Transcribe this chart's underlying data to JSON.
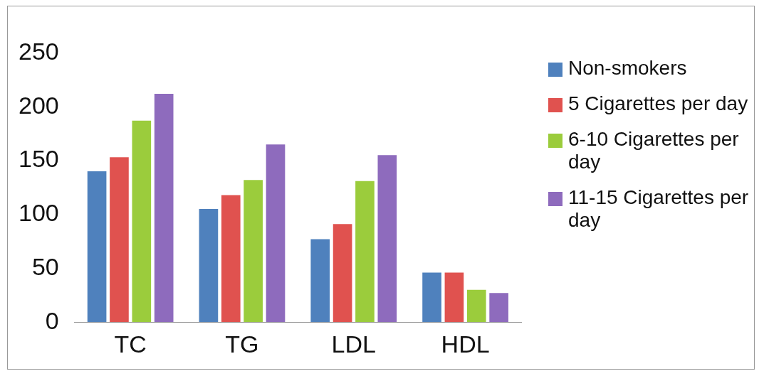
{
  "chart_data": {
    "type": "bar",
    "categories": [
      "TC",
      "TG",
      "LDL",
      "HDL"
    ],
    "series": [
      {
        "name": "Non-smokers",
        "color": "#4f81bd",
        "values": [
          140,
          105,
          77,
          46
        ]
      },
      {
        "name": "5 Cigarettes  per day",
        "color": "#e0524f",
        "values": [
          153,
          118,
          91,
          46
        ]
      },
      {
        "name": "6-10 Cigarettes per day",
        "color": "#9bcc3c",
        "values": [
          187,
          132,
          131,
          30
        ]
      },
      {
        "name": "11-15 Cigarettes per day",
        "color": "#8e6bbd",
        "values": [
          212,
          165,
          155,
          27
        ]
      }
    ],
    "ylim": [
      0,
      250
    ],
    "yticks": [
      0,
      50,
      100,
      150,
      200,
      250
    ],
    "grid": false,
    "legend": "right"
  }
}
